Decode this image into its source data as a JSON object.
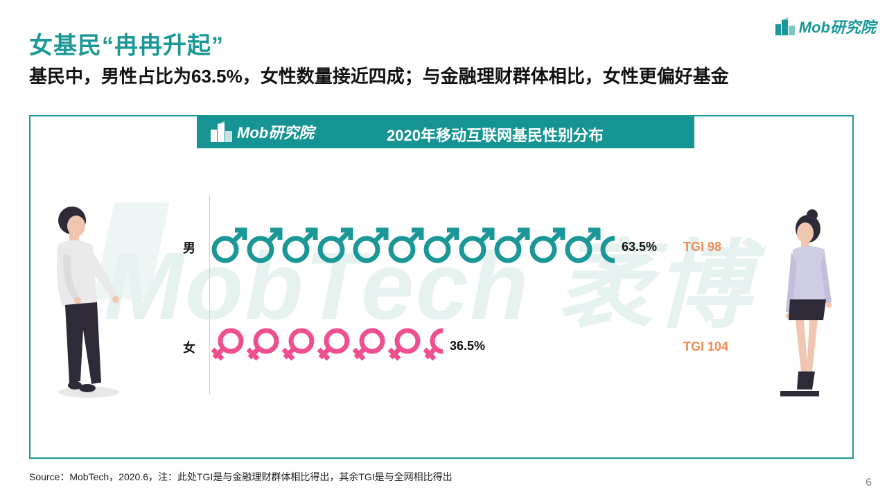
{
  "header": {
    "title": "女基民“冉冉升起”",
    "subtitle": "基民中，男性占比为63.5%，女性数量接近四成；与金融理财群体相比，女性更偏好基金",
    "logo_text": "Mob研究院"
  },
  "banner": {
    "logo_text": "Mob研究院",
    "title": "2020年移动互联网基民性别分布"
  },
  "watermark": "MobTech 袤博",
  "chart_data": {
    "type": "pictorial-bar",
    "title": "2020年移动互联网基民性别分布",
    "unit": "%",
    "categories": [
      "男",
      "女"
    ],
    "values": [
      63.5,
      36.5
    ],
    "value_labels": [
      "63.5%",
      "36.5%"
    ],
    "tgi": [
      98,
      104
    ],
    "tgi_labels": [
      "TGI 98",
      "TGI 104"
    ],
    "icons": [
      "male-symbol",
      "female-symbol"
    ],
    "colors": {
      "male": "#1a9796",
      "female": "#ee4f8e",
      "tgi": "#f08a52"
    }
  },
  "footer": {
    "source": "Source：MobTech，2020.6，注：此处TGI是与金融理财群体相比得出，其余TGI是与全网相比得出",
    "page_number": "6"
  }
}
